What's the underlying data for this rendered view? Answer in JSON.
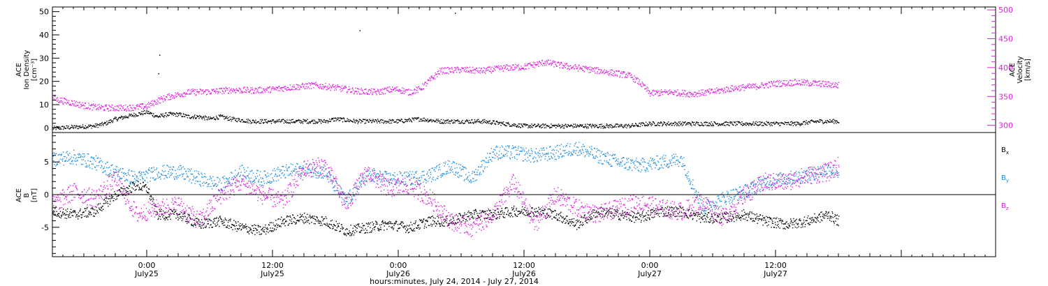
{
  "colors": {
    "black": "#000000",
    "magenta": "#e020e0",
    "blue": "#1e8ee0"
  },
  "xaxis": {
    "label": "hours:minutes, July 24, 2014 - July 27, 2014",
    "range_hours": [
      -9,
      81
    ],
    "ticks": [
      {
        "hour": 0,
        "time": "0:00",
        "day": "July25"
      },
      {
        "hour": 12,
        "time": "12:00",
        "day": "July25"
      },
      {
        "hour": 24,
        "time": "0:00",
        "day": "July26"
      },
      {
        "hour": 36,
        "time": "12:00",
        "day": "July26"
      },
      {
        "hour": 48,
        "time": "0:00",
        "day": "July27"
      },
      {
        "hour": 60,
        "time": "12:00",
        "day": "July27"
      }
    ]
  },
  "chart_data": [
    {
      "type": "scatter",
      "panel": "top",
      "x_unit": "hours since July 25 0:00",
      "left_axis": {
        "label_lines": [
          "ACE",
          "Ion Density",
          "[cm⁻³]"
        ],
        "range": [
          -2,
          52
        ],
        "ticks": [
          0,
          10,
          20,
          30,
          40,
          50
        ]
      },
      "right_axis": {
        "label_lines": [
          "ACE",
          "Velocity",
          "[km/s]"
        ],
        "range": [
          287.5,
          505
        ],
        "ticks": [
          300,
          350,
          400,
          450,
          500
        ]
      },
      "series": [
        {
          "axis": "left",
          "color": "#000000",
          "x": [
            -9,
            -7,
            -5,
            -4,
            -3,
            -2,
            -1,
            0,
            1,
            2,
            3,
            4,
            5,
            6,
            7,
            8,
            10,
            12,
            14,
            16,
            17,
            18,
            20,
            22,
            24,
            26,
            28,
            30,
            32,
            34,
            36,
            38,
            40,
            42,
            44,
            46,
            48,
            50,
            52,
            54,
            56,
            58,
            60,
            62,
            64,
            66
          ],
          "y": [
            0,
            0.5,
            1,
            2,
            4,
            5,
            6,
            7,
            5,
            6,
            6,
            5,
            5,
            4,
            5,
            4,
            3,
            3,
            3,
            3,
            3,
            4,
            3,
            3,
            3,
            4,
            3,
            3,
            3,
            2,
            1,
            1,
            1,
            1,
            1,
            1,
            2,
            2,
            2,
            2,
            2,
            2,
            2,
            2,
            3,
            3
          ]
        },
        {
          "axis": "right",
          "color": "#e020e0",
          "x": [
            -9,
            -8,
            -7,
            -6,
            -5,
            -4,
            -3,
            -2,
            -1,
            0,
            1,
            2,
            4,
            6,
            8,
            10,
            12,
            14,
            16,
            18,
            20,
            22,
            23,
            24,
            25,
            26,
            28,
            30,
            32,
            34,
            36,
            38,
            40,
            42,
            44,
            46,
            47,
            48,
            50,
            52,
            54,
            56,
            58,
            60,
            62,
            64,
            66
          ],
          "y": [
            347,
            343,
            339,
            335,
            332,
            331,
            331,
            331,
            332,
            334,
            343,
            350,
            358,
            359,
            362,
            361,
            363,
            367,
            370,
            366,
            360,
            358,
            362,
            363,
            358,
            363,
            395,
            397,
            395,
            400,
            402,
            410,
            403,
            398,
            393,
            387,
            375,
            356,
            358,
            355,
            359,
            365,
            368,
            373,
            375,
            373,
            370
          ]
        }
      ],
      "outliers_left": [
        [
          1.2,
          31.5
        ],
        [
          1.1,
          23.5
        ],
        [
          20.3,
          42
        ],
        [
          29.4,
          49.5
        ]
      ]
    },
    {
      "type": "scatter",
      "panel": "bottom",
      "x_unit": "hours since July 25 0:00",
      "axis": {
        "label_lines": [
          "ACE",
          "B",
          "[nT]"
        ],
        "range": [
          -9.5,
          9.5
        ],
        "ticks": [
          -5,
          0,
          5
        ]
      },
      "legend": [
        "Bx",
        "By",
        "Bz"
      ],
      "series": [
        {
          "name": "Bx",
          "color": "#000000",
          "x": [
            -9,
            -7,
            -5,
            -3,
            -1,
            0,
            1,
            3,
            5,
            7,
            9,
            11,
            13,
            15,
            17,
            19,
            21,
            23,
            25,
            27,
            29,
            31,
            33,
            35,
            37,
            39,
            41,
            43,
            45,
            47,
            49,
            51,
            53,
            55,
            57,
            59,
            61,
            63,
            65,
            66
          ],
          "y": [
            -2.5,
            -3,
            -2.5,
            0,
            1.5,
            1,
            -3,
            -3,
            -4.5,
            -4,
            -5,
            -5.5,
            -4,
            -3.5,
            -4,
            -5.5,
            -5,
            -4.5,
            -5,
            -4,
            -4,
            -3,
            -3,
            -2.5,
            -2.5,
            -3,
            -4.5,
            -2.5,
            -3,
            -3.5,
            -2.5,
            -2.5,
            -3.5,
            -3.5,
            -3,
            -4,
            -4.5,
            -4,
            -3,
            -4
          ]
        },
        {
          "name": "By",
          "color": "#1e8ee0",
          "x": [
            -9,
            -7,
            -5,
            -3,
            -1,
            1,
            3,
            5,
            7,
            9,
            11,
            13,
            15,
            17,
            19,
            21,
            23,
            25,
            27,
            29,
            31,
            33,
            35,
            37,
            39,
            41,
            43,
            45,
            47,
            49,
            51,
            53,
            55,
            57,
            59,
            61,
            63,
            65,
            66
          ],
          "y": [
            5.5,
            5.8,
            5,
            3.5,
            2.5,
            3.5,
            3.5,
            2.5,
            1.5,
            3.5,
            2.5,
            3.5,
            4,
            3.5,
            -1,
            3,
            2.5,
            2.5,
            3,
            4.5,
            2.5,
            6.5,
            6.5,
            6,
            6.5,
            7.2,
            6,
            5,
            4.5,
            5,
            5.5,
            -2,
            -0.5,
            0.5,
            2,
            2.5,
            3,
            4,
            3.5
          ]
        },
        {
          "name": "Bz",
          "color": "#e020e0",
          "x": [
            -9,
            -7,
            -5,
            -3,
            -1,
            1,
            3,
            5,
            7,
            9,
            11,
            13,
            15,
            17,
            19,
            21,
            23,
            25,
            27,
            29,
            31,
            33,
            35,
            37,
            39,
            41,
            43,
            45,
            47,
            49,
            51,
            53,
            55,
            57,
            59,
            61,
            63,
            65,
            66
          ],
          "y": [
            -1.5,
            0.5,
            -0.5,
            2.5,
            -3,
            -2,
            -1.5,
            -4,
            0,
            2,
            0,
            -1,
            4,
            4.5,
            -1.5,
            3.5,
            1,
            1.5,
            -0.5,
            -4,
            -5,
            -3,
            2,
            -4.5,
            0,
            -2,
            -3,
            -2,
            -1,
            -2,
            -2.5,
            -1,
            -3.5,
            0,
            2,
            2,
            3,
            3.5,
            4.5
          ]
        }
      ]
    }
  ]
}
